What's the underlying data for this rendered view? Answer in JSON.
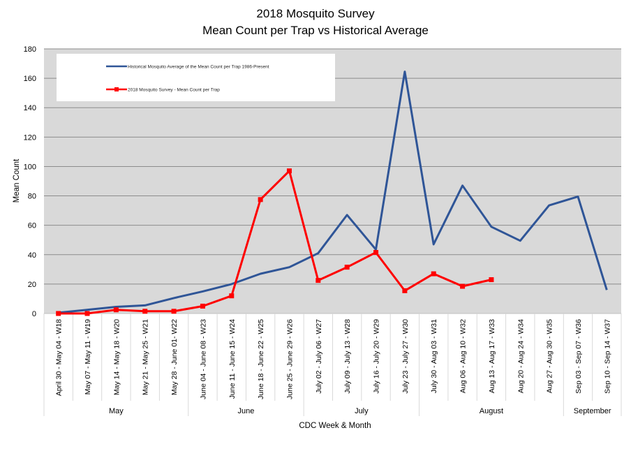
{
  "chart_data": {
    "type": "line",
    "title": "2018 Mosquito Survey",
    "subtitle": "Mean Count per Trap vs Historical Average",
    "xlabel": "CDC Week & Month",
    "ylabel": "Mean Count",
    "ylim": [
      0,
      180
    ],
    "yticks": [
      0,
      20,
      40,
      60,
      80,
      100,
      120,
      140,
      160,
      180
    ],
    "grid": true,
    "legend_position": "top-left",
    "categories": [
      "April 30 - May 04 - W18",
      "May 07 - May 11 - W19",
      "May 14 - May 18 - W20",
      "May 21 - May 25 - W21",
      "May 28 - June 01- W22",
      "June 04 - June 08 - W23",
      "June 11 - June 15 - W24",
      "June 18 - June 22 - W25",
      "June 25 - June 29 - W26",
      "July 02 - July 06 - W27",
      "July 09 - July 13 - W28",
      "July 16 - July 20 - W29",
      "July 23 - July 27 - W30",
      "July 30 - Aug 03 - W31",
      "Aug 06 - Aug 10 - W32",
      "Aug 13 - Aug 17 - W33",
      "Aug 20 - Aug 24 - W34",
      "Aug 27 - Aug 30 - W35",
      "Sep 03 - Sep 07 - W36",
      "Sep 10 - Sep 14 - W37"
    ],
    "months": [
      {
        "name": "May",
        "start": 0,
        "end": 4
      },
      {
        "name": "June",
        "start": 5,
        "end": 8
      },
      {
        "name": "July",
        "start": 9,
        "end": 12
      },
      {
        "name": "August",
        "start": 13,
        "end": 17
      },
      {
        "name": "September",
        "start": 18,
        "end": 19
      }
    ],
    "series": [
      {
        "name": "Historical Mosquito Average of the Mean Count per Trap 1986-Present",
        "color": "#2F5597",
        "marker": "none",
        "values": [
          0.5,
          2.5,
          4.5,
          5.5,
          10.5,
          15,
          20,
          27,
          31.5,
          41,
          67,
          43.5,
          164.5,
          47,
          87,
          59,
          49.5,
          73.5,
          79.5,
          16
        ]
      },
      {
        "name": "2018 Mosquito Survey - Mean Count per Trap",
        "color": "#FF0000",
        "marker": "square",
        "values": [
          0,
          0,
          2.5,
          1.5,
          1.5,
          5,
          12,
          77.5,
          97,
          22.5,
          31.5,
          41.5,
          15.5,
          27,
          18.5,
          23,
          null,
          null,
          null,
          null
        ]
      }
    ]
  }
}
